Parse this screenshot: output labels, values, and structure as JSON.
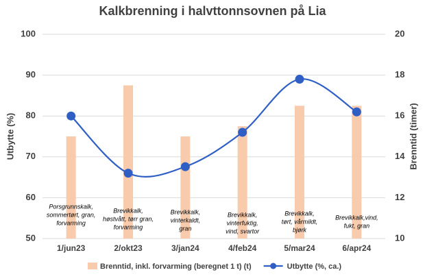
{
  "chart_data": {
    "type": "combo",
    "title": "Kalkbrenning i halvttonnsovnen på Lia",
    "y_label": "Utbytte (%)",
    "y2_label": "Brenntid (timer)",
    "categories": [
      "1/jun23",
      "2/okt23",
      "3/jan24",
      "4/feb24",
      "5/mar24",
      "6/apr24"
    ],
    "series": [
      {
        "name": "Brenntid, inkl. forvarming (beregnet 1 t) (t)",
        "type": "bar",
        "axis": "y2",
        "color": "#f8cbad",
        "values": [
          15.0,
          17.5,
          15.0,
          15.5,
          16.5,
          16.5
        ]
      },
      {
        "name": "Utbytte (%, ca.)",
        "type": "line",
        "color": "#2f5fc4",
        "values": [
          80,
          66,
          67.6,
          76,
          89,
          81
        ]
      }
    ],
    "annotations": [
      [
        "Porsgrunnskalk,",
        "sommertørt, gran,",
        "forvarming"
      ],
      [
        "Brevikkalk,",
        "høstvått, tørr gran,",
        "forvarming"
      ],
      [
        "Brevikkalk,",
        "vinterkaldt,",
        "gran"
      ],
      [
        "Brevikkalk,",
        "vinterfuktig,",
        "vind, svartor"
      ],
      [
        "Brevikkalk,",
        "tørt, vårmildt,",
        "bjørk"
      ],
      [
        "Brevikkalk,vind,",
        "fukt, gran"
      ]
    ],
    "ylim": [
      50,
      100
    ],
    "yticks": [
      50,
      60,
      70,
      80,
      90,
      100
    ],
    "y2lim": [
      10,
      20
    ],
    "y2ticks": [
      10,
      12,
      14,
      16,
      18,
      20
    ],
    "grid": true,
    "legend": "bottom"
  }
}
